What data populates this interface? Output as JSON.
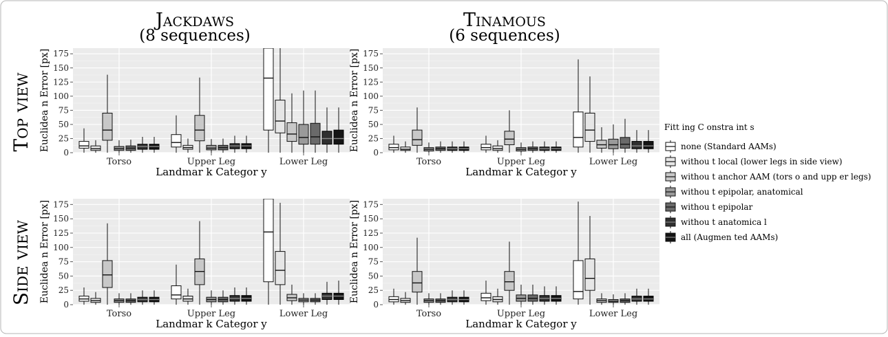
{
  "figure": {
    "columns": [
      {
        "title": "Jackdaws",
        "subtitle": "(8 sequences)"
      },
      {
        "title": "Tinamous",
        "subtitle": "(6 sequences)"
      }
    ],
    "rows": [
      {
        "label": "Top view"
      },
      {
        "label": "Side view"
      }
    ],
    "legend": {
      "title": "Fitt ing  C onstra   int s",
      "entries": [
        {
          "label": "none (Standard  AAMs)",
          "color": "#ffffff"
        },
        {
          "label": "withou t local (lower legs in side view)",
          "color": "#e6e6e6"
        },
        {
          "label": "withou t anchor AAM (tors o and upp er legs)",
          "color": "#c8c8c8"
        },
        {
          "label": "withou t epipolar, anatomical",
          "color": "#9a9a9a"
        },
        {
          "label": "withou t epipolar",
          "color": "#6a6a6a"
        },
        {
          "label": "withou t anatomica l",
          "color": "#2f2f2f"
        },
        {
          "label": "all (Augmen ted AAMs)",
          "color": "#141414"
        }
      ]
    }
  },
  "chart_data": [
    {
      "type": "boxplot",
      "panel": "Jackdaws / Top view",
      "xlabel": "Landmar k Categor y",
      "ylabel": "Euclidea n Error [px]",
      "ylim": [
        0,
        185
      ],
      "yticks": [
        0,
        25,
        50,
        75,
        100,
        125,
        150,
        175
      ],
      "categories": [
        "Torso",
        "Upper Leg",
        "Lower Leg"
      ],
      "grid": true,
      "series": [
        {
          "name": "none (Standard  AAMs)",
          "boxes": [
            [
              0,
              8,
              12,
              20,
              43
            ],
            [
              0,
              10,
              18,
              32,
              66
            ],
            [
              0,
              40,
              132,
              185,
              185
            ]
          ]
        },
        {
          "name": "withou t local (lower legs in side view)",
          "boxes": [
            [
              0,
              4,
              7,
              12,
              22
            ],
            [
              0,
              6,
              9,
              13,
              25
            ],
            [
              0,
              35,
              56,
              93,
              185
            ]
          ]
        },
        {
          "name": "withou t anchor AAM (tors o and upp er legs)",
          "boxes": [
            [
              0,
              22,
              40,
              70,
              138
            ],
            [
              0,
              21,
              40,
              66,
              133
            ],
            [
              0,
              20,
              33,
              53,
              105
            ]
          ]
        },
        {
          "name": "withou t epipolar, anatomical",
          "boxes": [
            [
              0,
              4,
              7,
              11,
              22
            ],
            [
              0,
              5,
              8,
              13,
              24
            ],
            [
              0,
              15,
              27,
              50,
              110
            ]
          ]
        },
        {
          "name": "withou t epipolar",
          "boxes": [
            [
              0,
              4,
              8,
              12,
              23
            ],
            [
              0,
              5,
              9,
              13,
              25
            ],
            [
              0,
              15,
              28,
              52,
              110
            ]
          ]
        },
        {
          "name": "withou t anatomica l",
          "boxes": [
            [
              0,
              6,
              11,
              15,
              28
            ],
            [
              0,
              7,
              12,
              16,
              30
            ],
            [
              0,
              15,
              25,
              38,
              80
            ]
          ]
        },
        {
          "name": "all (Augmen ted AAMs)",
          "boxes": [
            [
              0,
              6,
              11,
              15,
              28
            ],
            [
              0,
              7,
              12,
              16,
              30
            ],
            [
              0,
              15,
              25,
              40,
              80
            ]
          ]
        }
      ]
    },
    {
      "type": "boxplot",
      "panel": "Tinamous / Top view",
      "xlabel": "Landmar k Categor y",
      "ylabel": "Euclidea n Error [px]",
      "ylim": [
        0,
        185
      ],
      "yticks": [
        0,
        25,
        50,
        75,
        100,
        125,
        150,
        175
      ],
      "categories": [
        "Torso",
        "Upper Leg",
        "Lower Leg"
      ],
      "grid": true,
      "series": [
        {
          "name": "none (Standard  AAMs)",
          "boxes": [
            [
              0,
              5,
              9,
              15,
              30
            ],
            [
              0,
              5,
              9,
              15,
              30
            ],
            [
              0,
              10,
              27,
              72,
              165
            ]
          ]
        },
        {
          "name": "withou t local (lower legs in side view)",
          "boxes": [
            [
              0,
              4,
              6,
              10,
              20
            ],
            [
              0,
              4,
              7,
              12,
              22
            ],
            [
              0,
              20,
              40,
              70,
              135
            ]
          ]
        },
        {
          "name": "withou t anchor AAM (tors o and upp er legs)",
          "boxes": [
            [
              0,
              13,
              23,
              40,
              80
            ],
            [
              0,
              14,
              24,
              38,
              75
            ],
            [
              0,
              8,
              14,
              22,
              45
            ]
          ]
        },
        {
          "name": "withou t epipolar, anatomical",
          "boxes": [
            [
              0,
              3,
              6,
              9,
              18
            ],
            [
              0,
              3,
              6,
              9,
              18
            ],
            [
              0,
              7,
              14,
              24,
              50
            ]
          ]
        },
        {
          "name": "withou t epipolar",
          "boxes": [
            [
              0,
              4,
              7,
              10,
              20
            ],
            [
              0,
              4,
              7,
              10,
              20
            ],
            [
              0,
              8,
              15,
              27,
              60
            ]
          ]
        },
        {
          "name": "withou t anatomica l",
          "boxes": [
            [
              0,
              4,
              7,
              10,
              20
            ],
            [
              0,
              4,
              7,
              10,
              20
            ],
            [
              0,
              7,
              12,
              20,
              40
            ]
          ]
        },
        {
          "name": "all (Augmen ted AAMs)",
          "boxes": [
            [
              0,
              4,
              7,
              10,
              20
            ],
            [
              0,
              4,
              7,
              10,
              20
            ],
            [
              0,
              7,
              12,
              20,
              40
            ]
          ]
        }
      ]
    },
    {
      "type": "boxplot",
      "panel": "Jackdaws / Side view",
      "xlabel": "Landmar k Categor y",
      "ylabel": "Euclidea n Error [px]",
      "ylim": [
        0,
        185
      ],
      "yticks": [
        0,
        25,
        50,
        75,
        100,
        125,
        150,
        175
      ],
      "categories": [
        "Torso",
        "Upper Leg",
        "Lower Leg"
      ],
      "grid": true,
      "series": [
        {
          "name": "none (Standard  AAMs)",
          "boxes": [
            [
              0,
              6,
              10,
              15,
              30
            ],
            [
              0,
              10,
              17,
              33,
              70
            ],
            [
              0,
              40,
              127,
              185,
              185
            ]
          ]
        },
        {
          "name": "withou t local (lower legs in side view)",
          "boxes": [
            [
              0,
              4,
              7,
              11,
              22
            ],
            [
              0,
              6,
              10,
              15,
              28
            ],
            [
              0,
              35,
              60,
              93,
              178
            ]
          ]
        },
        {
          "name": "withou t anchor AAM (tors o and upp er legs)",
          "boxes": [
            [
              0,
              30,
              52,
              77,
              142
            ],
            [
              0,
              35,
              58,
              80,
              146
            ],
            [
              0,
              7,
              12,
              18,
              35
            ]
          ]
        },
        {
          "name": "withou t epipolar, anatomical",
          "boxes": [
            [
              0,
              4,
              7,
              10,
              20
            ],
            [
              0,
              5,
              9,
              13,
              25
            ],
            [
              0,
              5,
              8,
              11,
              20
            ]
          ]
        },
        {
          "name": "withou t epipolar",
          "boxes": [
            [
              0,
              4,
              7,
              10,
              20
            ],
            [
              0,
              5,
              9,
              13,
              25
            ],
            [
              0,
              5,
              8,
              11,
              20
            ]
          ]
        },
        {
          "name": "withou t anatomica l",
          "boxes": [
            [
              0,
              5,
              9,
              13,
              25
            ],
            [
              0,
              6,
              11,
              16,
              30
            ],
            [
              0,
              9,
              15,
              20,
              40
            ]
          ]
        },
        {
          "name": "all (Augmen ted AAMs)",
          "boxes": [
            [
              0,
              5,
              9,
              13,
              25
            ],
            [
              0,
              6,
              11,
              16,
              30
            ],
            [
              0,
              9,
              15,
              20,
              42
            ]
          ]
        }
      ]
    },
    {
      "type": "boxplot",
      "panel": "Tinamous / Side view",
      "xlabel": "Landmar k Categor y",
      "ylabel": "Euclidea n Error [px]",
      "ylim": [
        0,
        185
      ],
      "yticks": [
        0,
        25,
        50,
        75,
        100,
        125,
        150,
        175
      ],
      "categories": [
        "Torso",
        "Upper Leg",
        "Lower Leg"
      ],
      "grid": true,
      "series": [
        {
          "name": "none (Standard  AAMs)",
          "boxes": [
            [
              0,
              5,
              9,
              14,
              28
            ],
            [
              0,
              7,
              12,
              20,
              42
            ],
            [
              0,
              10,
              23,
              77,
              180
            ]
          ]
        },
        {
          "name": "withou t local (lower legs in side view)",
          "boxes": [
            [
              0,
              4,
              7,
              11,
              22
            ],
            [
              0,
              5,
              9,
              14,
              28
            ],
            [
              0,
              25,
              46,
              80,
              155
            ]
          ]
        },
        {
          "name": "withou t anchor AAM (tors o and upp er legs)",
          "boxes": [
            [
              0,
              22,
              38,
              58,
              117
            ],
            [
              0,
              25,
              40,
              58,
              110
            ],
            [
              0,
              4,
              7,
              10,
              20
            ]
          ]
        },
        {
          "name": "withou t epipolar, anatomical",
          "boxes": [
            [
              0,
              4,
              7,
              10,
              20
            ],
            [
              0,
              6,
              11,
              17,
              35
            ],
            [
              0,
              4,
              6,
              9,
              18
            ]
          ]
        },
        {
          "name": "withou t epipolar",
          "boxes": [
            [
              0,
              4,
              7,
              10,
              20
            ],
            [
              0,
              6,
              11,
              17,
              35
            ],
            [
              0,
              4,
              7,
              10,
              20
            ]
          ]
        },
        {
          "name": "withou t anatomica l",
          "boxes": [
            [
              0,
              5,
              9,
              13,
              25
            ],
            [
              0,
              6,
              11,
              16,
              32
            ],
            [
              0,
              6,
              10,
              15,
              28
            ]
          ]
        },
        {
          "name": "all (Augmen ted AAMs)",
          "boxes": [
            [
              0,
              5,
              9,
              13,
              25
            ],
            [
              0,
              6,
              11,
              16,
              32
            ],
            [
              0,
              6,
              10,
              15,
              28
            ]
          ]
        }
      ]
    }
  ]
}
